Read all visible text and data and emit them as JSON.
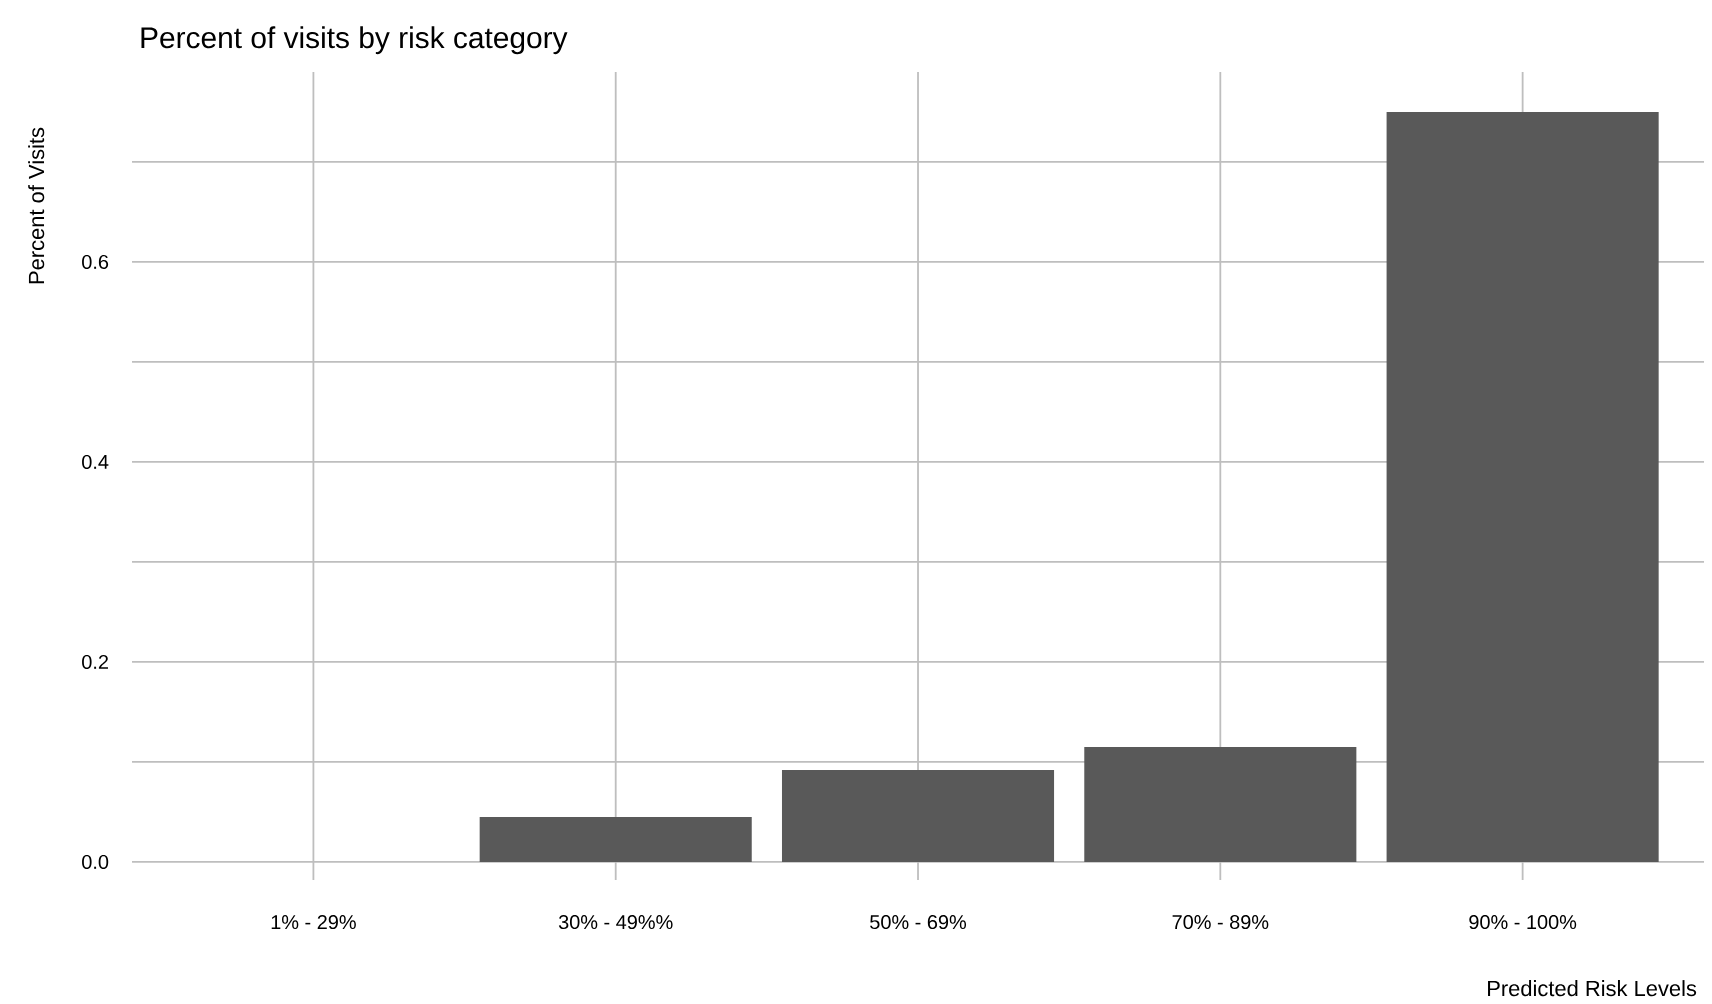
{
  "chart_data": {
    "type": "bar",
    "title": "Percent of visits by risk category",
    "xlabel": "Predicted Risk Levels",
    "ylabel": "Percent of Visits",
    "categories": [
      "1% - 29%",
      "30% - 49%%",
      "50% - 69%",
      "70% - 89%",
      "90% - 100%"
    ],
    "values": [
      0,
      0.045,
      0.092,
      0.115,
      0.75
    ],
    "color": "#595959",
    "ylim": [
      -0.018,
      0.79
    ],
    "yticks": [
      {
        "value": 0.0,
        "label": "0.0"
      },
      {
        "value": 0.1,
        "label": null
      },
      {
        "value": 0.2,
        "label": "0.2"
      },
      {
        "value": 0.3,
        "label": null
      },
      {
        "value": 0.4,
        "label": "0.4"
      },
      {
        "value": 0.5,
        "label": null
      },
      {
        "value": 0.6,
        "label": "0.6"
      },
      {
        "value": 0.7,
        "label": null
      }
    ],
    "grid": true
  }
}
